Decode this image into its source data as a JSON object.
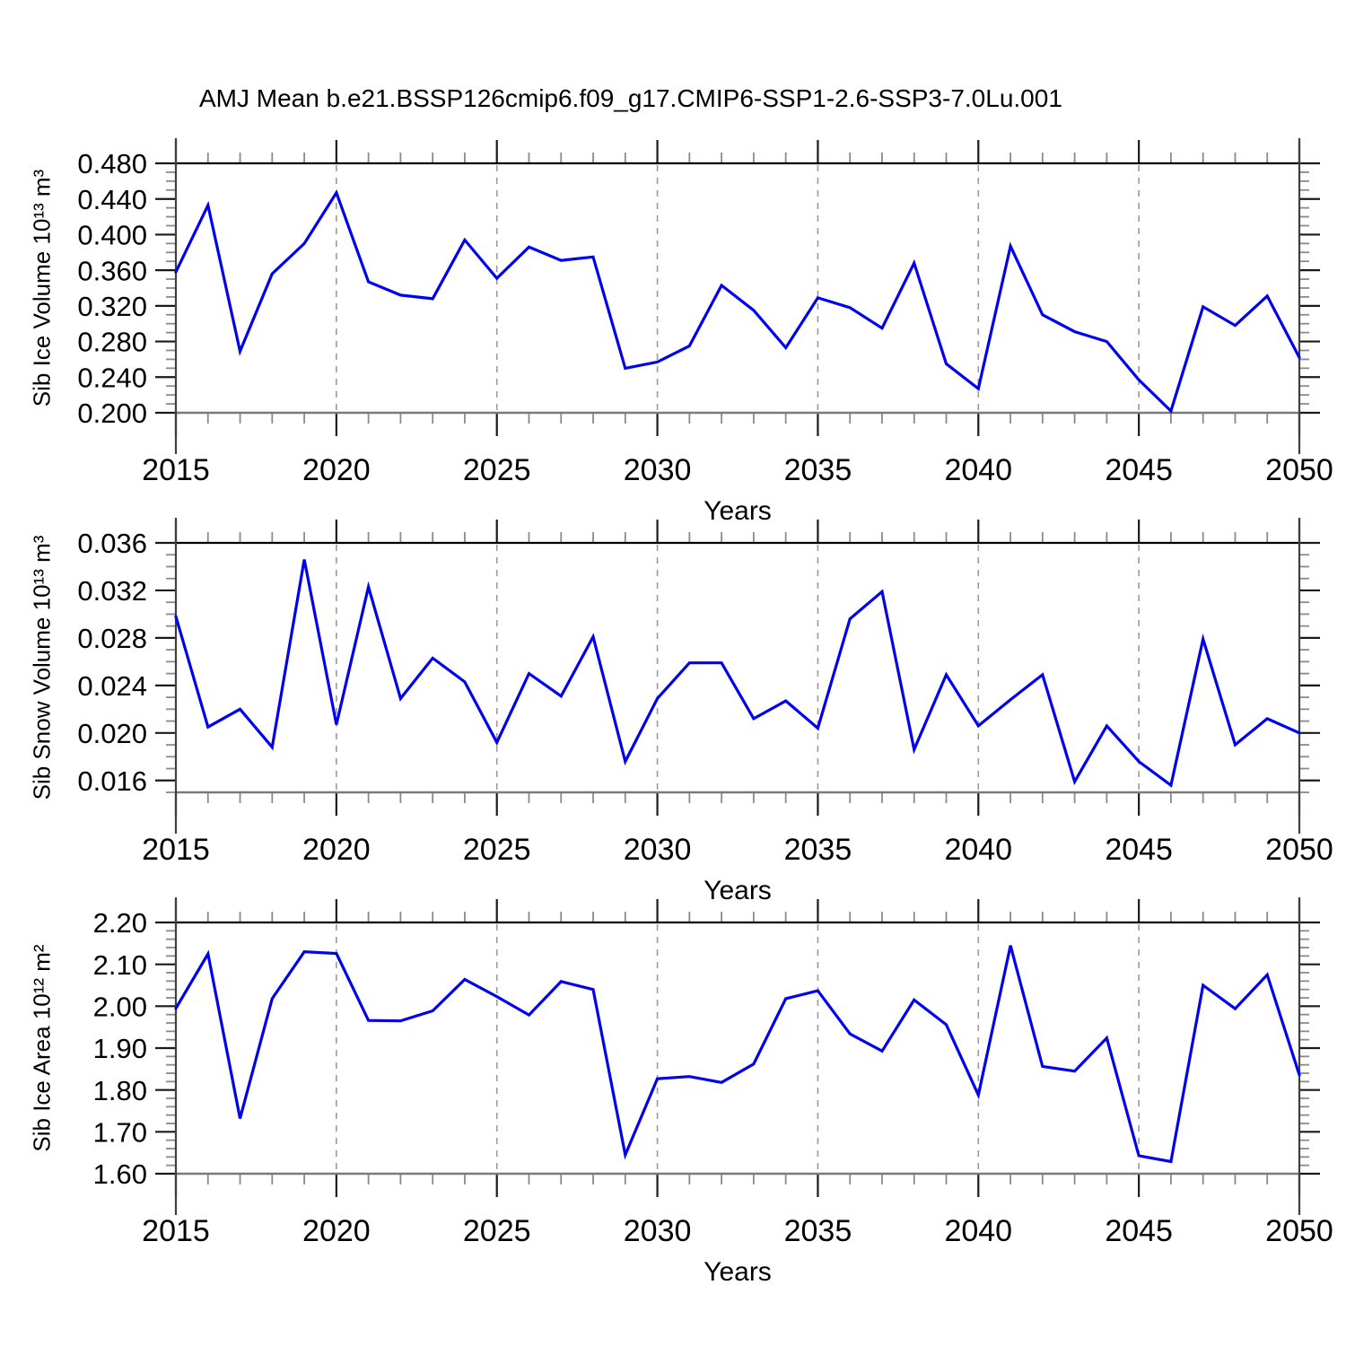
{
  "title": "AMJ Mean b.e21.BSSP126cmip6.f09_g17.CMIP6-SSP1-2.6-SSP3-7.0Lu.001",
  "colors": {
    "line": "#0000ee",
    "grid": "#9a9a9a",
    "frame_top": "#000000",
    "frame_bottom": "#7a7a7a",
    "spine": "#3f3f3f",
    "tick_major": "#1a1a1a",
    "tick_minor": "#8a8a8a",
    "text": "#000000",
    "background": "#ffffff"
  },
  "xaxis": {
    "label": "Years",
    "range": [
      2015,
      2050
    ],
    "tick_labels": [
      "2015",
      "2020",
      "2025",
      "2030",
      "2035",
      "2040",
      "2045",
      "2050"
    ],
    "tick_values": [
      2015,
      2020,
      2025,
      2030,
      2035,
      2040,
      2045,
      2050
    ],
    "minor_step": 1,
    "grid_years": [
      2020,
      2025,
      2030,
      2035,
      2040,
      2045
    ]
  },
  "chart_data": [
    {
      "type": "line",
      "ylabel": "Sib Ice Volume 10¹³ m³",
      "xlabel": "Years",
      "ylim": [
        0.2,
        0.48
      ],
      "ytick_values": [
        0.2,
        0.24,
        0.28,
        0.32,
        0.36,
        0.4,
        0.44,
        0.48
      ],
      "ytick_labels": [
        "0.200",
        "0.240",
        "0.280",
        "0.320",
        "0.360",
        "0.400",
        "0.440",
        "0.480"
      ],
      "yminor_step": 0.01,
      "x": [
        2015,
        2016,
        2017,
        2018,
        2019,
        2020,
        2021,
        2022,
        2023,
        2024,
        2025,
        2026,
        2027,
        2028,
        2029,
        2030,
        2031,
        2032,
        2033,
        2034,
        2035,
        2036,
        2037,
        2038,
        2039,
        2040,
        2041,
        2042,
        2043,
        2044,
        2045,
        2046,
        2047,
        2048,
        2049,
        2050
      ],
      "values": [
        0.358,
        0.433,
        0.269,
        0.356,
        0.39,
        0.447,
        0.347,
        0.332,
        0.328,
        0.394,
        0.351,
        0.386,
        0.371,
        0.375,
        0.25,
        0.257,
        0.275,
        0.343,
        0.315,
        0.273,
        0.329,
        0.318,
        0.295,
        0.368,
        0.255,
        0.227,
        0.387,
        0.31,
        0.291,
        0.28,
        0.237,
        0.202,
        0.319,
        0.298,
        0.331,
        0.262
      ]
    },
    {
      "type": "line",
      "ylabel": "Sib Snow Volume 10¹³ m³",
      "xlabel": "Years",
      "ylim": [
        0.015,
        0.036
      ],
      "ytick_values": [
        0.016,
        0.02,
        0.024,
        0.028,
        0.032,
        0.036
      ],
      "ytick_labels": [
        "0.016",
        "0.020",
        "0.024",
        "0.028",
        "0.032",
        "0.036"
      ],
      "yminor_step": 0.001,
      "x": [
        2015,
        2016,
        2017,
        2018,
        2019,
        2020,
        2021,
        2022,
        2023,
        2024,
        2025,
        2026,
        2027,
        2028,
        2029,
        2030,
        2031,
        2032,
        2033,
        2034,
        2035,
        2036,
        2037,
        2038,
        2039,
        2040,
        2041,
        2042,
        2043,
        2044,
        2045,
        2046,
        2047,
        2048,
        2049,
        2050
      ],
      "values": [
        0.0298,
        0.0205,
        0.022,
        0.0188,
        0.0346,
        0.0207,
        0.0323,
        0.0229,
        0.0263,
        0.0243,
        0.0192,
        0.025,
        0.0231,
        0.0281,
        0.0176,
        0.0229,
        0.0259,
        0.0259,
        0.0212,
        0.0227,
        0.0204,
        0.0296,
        0.0319,
        0.0186,
        0.0249,
        0.0206,
        0.0228,
        0.0249,
        0.0159,
        0.0206,
        0.0176,
        0.0156,
        0.0279,
        0.019,
        0.0212,
        0.02
      ]
    },
    {
      "type": "line",
      "ylabel": "Sib Ice Area 10¹² m²",
      "xlabel": "Years",
      "ylim": [
        1.6,
        2.2
      ],
      "ytick_values": [
        1.6,
        1.7,
        1.8,
        1.9,
        2.0,
        2.1,
        2.2
      ],
      "ytick_labels": [
        "1.60",
        "1.70",
        "1.80",
        "1.90",
        "2.00",
        "2.10",
        "2.20"
      ],
      "yminor_step": 0.02,
      "x": [
        2015,
        2016,
        2017,
        2018,
        2019,
        2020,
        2021,
        2022,
        2023,
        2024,
        2025,
        2026,
        2027,
        2028,
        2029,
        2030,
        2031,
        2032,
        2033,
        2034,
        2035,
        2036,
        2037,
        2038,
        2039,
        2040,
        2041,
        2042,
        2043,
        2044,
        2045,
        2046,
        2047,
        2048,
        2049,
        2050
      ],
      "values": [
        1.995,
        2.125,
        1.732,
        2.018,
        2.13,
        2.126,
        1.966,
        1.965,
        1.989,
        2.064,
        2.023,
        1.979,
        2.059,
        2.04,
        1.645,
        1.827,
        1.832,
        1.818,
        1.862,
        2.018,
        2.037,
        1.934,
        1.893,
        2.015,
        1.956,
        1.788,
        2.145,
        1.856,
        1.845,
        1.924,
        1.643,
        1.629,
        2.05,
        1.994,
        2.075,
        1.836
      ]
    }
  ]
}
